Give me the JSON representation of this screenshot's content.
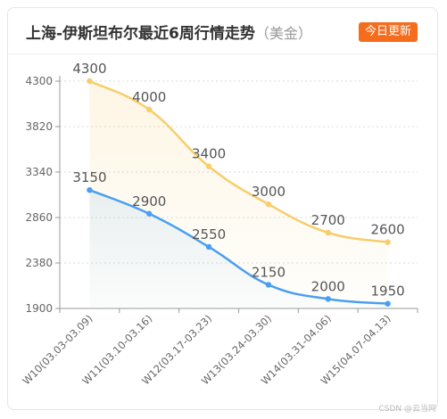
{
  "header": {
    "title": "上海-伊斯坦布尔最近6周行情走势",
    "unit": "（美金）",
    "update_button": "今日更新",
    "accent_color": "#f56c1d"
  },
  "watermark": "CSDN @云当网",
  "chart_data": {
    "type": "area",
    "categories": [
      "W10(03.03-03.09)",
      "W11(03.10-03.16)",
      "W12(03.17-03.23)",
      "W13(03.24-03.30)",
      "W14(03.31-04.06)",
      "W15(04.07-04.13)"
    ],
    "y_ticks": [
      1900,
      2380,
      2860,
      3340,
      3820,
      4300
    ],
    "ylim": [
      1900,
      4300
    ],
    "grid": true,
    "series": [
      {
        "values": [
          4300,
          4000,
          3400,
          3000,
          2700,
          2600
        ],
        "color": "#f8cd6b"
      },
      {
        "values": [
          3150,
          2900,
          2550,
          2150,
          2000,
          1950
        ],
        "color": "#4a9ff0"
      }
    ]
  }
}
